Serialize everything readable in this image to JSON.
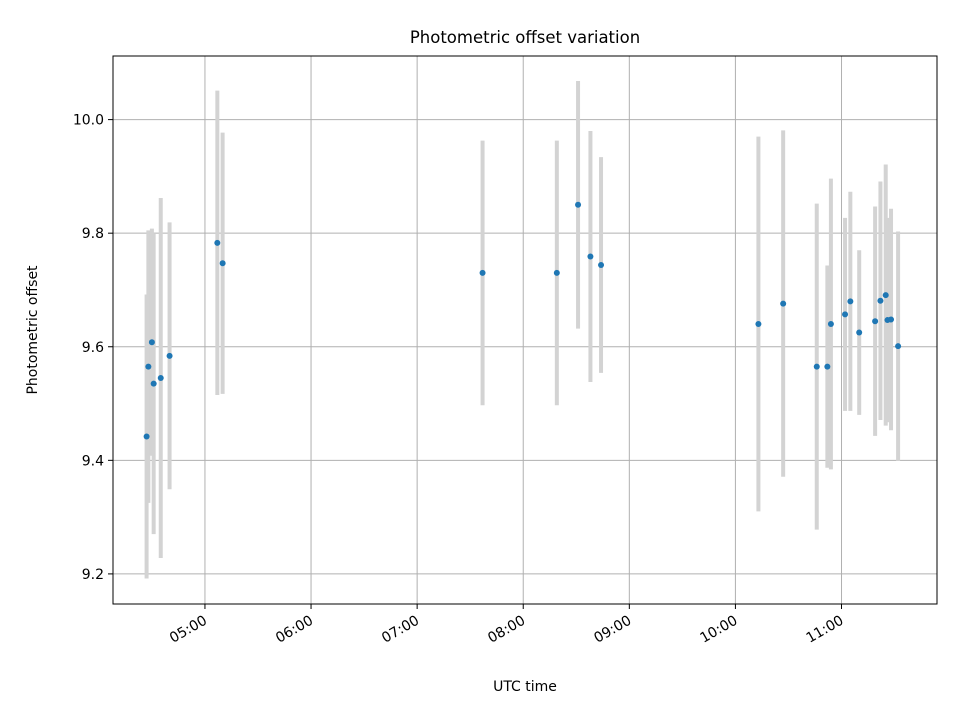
{
  "chart_data": {
    "type": "scatter",
    "title": "Photometric offset variation",
    "xlabel": "UTC time",
    "ylabel": "Photometric offset",
    "grid": true,
    "xlim": [
      "04:08",
      "11:54"
    ],
    "ylim": [
      9.147,
      10.112
    ],
    "x_ticks": [
      "05:00",
      "06:00",
      "07:00",
      "08:00",
      "09:00",
      "10:00",
      "11:00"
    ],
    "y_ticks": [
      "9.2",
      "9.4",
      "9.6",
      "9.8",
      "10.0"
    ],
    "colors": {
      "points": "#1f77b4",
      "errorbars": "#d3d3d3",
      "grid": "#b0b0b0"
    },
    "points": [
      {
        "x": "04:27",
        "y": 9.442,
        "err": 0.25
      },
      {
        "x": "04:28",
        "y": 9.565,
        "err": 0.24
      },
      {
        "x": "04:30",
        "y": 9.608,
        "err": 0.2
      },
      {
        "x": "04:31",
        "y": 9.535,
        "err": 0.265
      },
      {
        "x": "04:35",
        "y": 9.545,
        "err": 0.317
      },
      {
        "x": "04:40",
        "y": 9.584,
        "err": 0.235
      },
      {
        "x": "05:07",
        "y": 9.783,
        "err": 0.268
      },
      {
        "x": "05:10",
        "y": 9.747,
        "err": 0.23
      },
      {
        "x": "07:37",
        "y": 9.73,
        "err": 0.233
      },
      {
        "x": "08:19",
        "y": 9.73,
        "err": 0.233
      },
      {
        "x": "08:31",
        "y": 9.85,
        "err": 0.218
      },
      {
        "x": "08:38",
        "y": 9.759,
        "err": 0.221
      },
      {
        "x": "08:44",
        "y": 9.744,
        "err": 0.19
      },
      {
        "x": "10:13",
        "y": 9.64,
        "err": 0.33
      },
      {
        "x": "10:27",
        "y": 9.676,
        "err": 0.305
      },
      {
        "x": "10:46",
        "y": 9.565,
        "err": 0.287
      },
      {
        "x": "10:52",
        "y": 9.565,
        "err": 0.178
      },
      {
        "x": "10:54",
        "y": 9.64,
        "err": 0.256
      },
      {
        "x": "11:02",
        "y": 9.657,
        "err": 0.17
      },
      {
        "x": "11:05",
        "y": 9.68,
        "err": 0.193
      },
      {
        "x": "11:10",
        "y": 9.625,
        "err": 0.145
      },
      {
        "x": "11:19",
        "y": 9.645,
        "err": 0.202
      },
      {
        "x": "11:22",
        "y": 9.681,
        "err": 0.21
      },
      {
        "x": "11:25",
        "y": 9.691,
        "err": 0.23
      },
      {
        "x": "11:26",
        "y": 9.647,
        "err": 0.18
      },
      {
        "x": "11:28",
        "y": 9.648,
        "err": 0.195
      },
      {
        "x": "11:32",
        "y": 9.601,
        "err": 0.202
      }
    ]
  }
}
